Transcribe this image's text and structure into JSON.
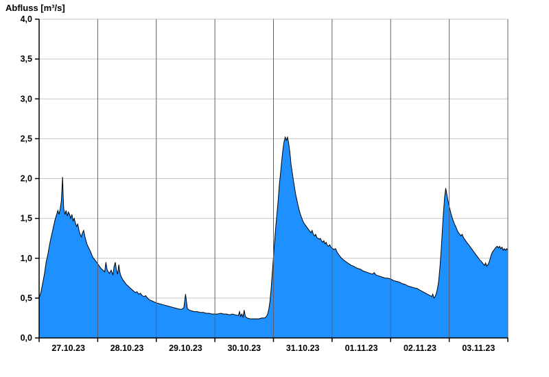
{
  "chart_data": {
    "type": "area",
    "title": "Abfluss [m³/s]",
    "ylabel": "Abfluss [m³/s]",
    "xlabel": "",
    "ylim": [
      0.0,
      4.0
    ],
    "y_tick_step": 0.5,
    "y_ticks": [
      0.0,
      0.5,
      1.0,
      1.5,
      2.0,
      2.5,
      3.0,
      3.5,
      4.0
    ],
    "y_tick_labels": [
      "0,0",
      "0,5",
      "1,0",
      "1,5",
      "2,0",
      "2,5",
      "3,0",
      "3,5",
      "4,0"
    ],
    "x_labels": [
      "27.10.23",
      "28.10.23",
      "29.10.23",
      "30.10.23",
      "31.10.23",
      "01.11.23",
      "02.11.23",
      "03.11.23"
    ],
    "x_range_days": [
      0,
      8
    ],
    "grid": true,
    "legend": "none",
    "fill_color": "#1E90FF",
    "line_color": "#000000",
    "grid_color": "#c6c6c6",
    "day_line_color": "#5f5f6e",
    "axis_color": "#000000",
    "series": [
      {
        "name": "Abfluss",
        "unit": "m³/s",
        "points": [
          [
            0.0,
            0.5
          ],
          [
            0.03,
            0.57
          ],
          [
            0.06,
            0.68
          ],
          [
            0.09,
            0.8
          ],
          [
            0.12,
            0.95
          ],
          [
            0.15,
            1.05
          ],
          [
            0.18,
            1.18
          ],
          [
            0.21,
            1.28
          ],
          [
            0.24,
            1.38
          ],
          [
            0.27,
            1.48
          ],
          [
            0.3,
            1.55
          ],
          [
            0.32,
            1.6
          ],
          [
            0.34,
            1.55
          ],
          [
            0.36,
            1.62
          ],
          [
            0.38,
            1.72
          ],
          [
            0.4,
            2.02
          ],
          [
            0.41,
            1.8
          ],
          [
            0.42,
            1.62
          ],
          [
            0.44,
            1.55
          ],
          [
            0.46,
            1.6
          ],
          [
            0.48,
            1.53
          ],
          [
            0.5,
            1.58
          ],
          [
            0.52,
            1.55
          ],
          [
            0.54,
            1.5
          ],
          [
            0.56,
            1.55
          ],
          [
            0.58,
            1.47
          ],
          [
            0.6,
            1.5
          ],
          [
            0.62,
            1.44
          ],
          [
            0.64,
            1.4
          ],
          [
            0.66,
            1.43
          ],
          [
            0.68,
            1.35
          ],
          [
            0.7,
            1.3
          ],
          [
            0.72,
            1.27
          ],
          [
            0.74,
            1.32
          ],
          [
            0.76,
            1.35
          ],
          [
            0.78,
            1.28
          ],
          [
            0.8,
            1.22
          ],
          [
            0.82,
            1.17
          ],
          [
            0.84,
            1.14
          ],
          [
            0.86,
            1.11
          ],
          [
            0.88,
            1.08
          ],
          [
            0.9,
            1.04
          ],
          [
            0.92,
            1.01
          ],
          [
            0.94,
            0.99
          ],
          [
            0.96,
            0.97
          ],
          [
            0.98,
            0.95
          ],
          [
            1.0,
            0.93
          ],
          [
            1.03,
            0.9
          ],
          [
            1.06,
            0.87
          ],
          [
            1.09,
            0.85
          ],
          [
            1.12,
            0.83
          ],
          [
            1.14,
            0.95
          ],
          [
            1.16,
            0.86
          ],
          [
            1.18,
            0.83
          ],
          [
            1.2,
            0.81
          ],
          [
            1.23,
            0.85
          ],
          [
            1.26,
            0.79
          ],
          [
            1.28,
            0.9
          ],
          [
            1.3,
            0.95
          ],
          [
            1.32,
            0.85
          ],
          [
            1.34,
            0.8
          ],
          [
            1.36,
            0.92
          ],
          [
            1.38,
            0.82
          ],
          [
            1.4,
            0.77
          ],
          [
            1.43,
            0.73
          ],
          [
            1.46,
            0.7
          ],
          [
            1.49,
            0.67
          ],
          [
            1.52,
            0.65
          ],
          [
            1.55,
            0.63
          ],
          [
            1.58,
            0.61
          ],
          [
            1.61,
            0.59
          ],
          [
            1.64,
            0.57
          ],
          [
            1.67,
            0.58
          ],
          [
            1.7,
            0.55
          ],
          [
            1.73,
            0.56
          ],
          [
            1.76,
            0.53
          ],
          [
            1.79,
            0.52
          ],
          [
            1.82,
            0.53
          ],
          [
            1.85,
            0.5
          ],
          [
            1.88,
            0.48
          ],
          [
            1.91,
            0.47
          ],
          [
            1.94,
            0.46
          ],
          [
            1.97,
            0.45
          ],
          [
            2.0,
            0.44
          ],
          [
            2.05,
            0.43
          ],
          [
            2.1,
            0.42
          ],
          [
            2.15,
            0.41
          ],
          [
            2.2,
            0.4
          ],
          [
            2.25,
            0.39
          ],
          [
            2.3,
            0.38
          ],
          [
            2.35,
            0.37
          ],
          [
            2.4,
            0.36
          ],
          [
            2.44,
            0.36
          ],
          [
            2.47,
            0.38
          ],
          [
            2.5,
            0.55
          ],
          [
            2.53,
            0.37
          ],
          [
            2.56,
            0.35
          ],
          [
            2.6,
            0.34
          ],
          [
            2.65,
            0.33
          ],
          [
            2.7,
            0.33
          ],
          [
            2.75,
            0.32
          ],
          [
            2.8,
            0.32
          ],
          [
            2.85,
            0.31
          ],
          [
            2.9,
            0.31
          ],
          [
            2.95,
            0.3
          ],
          [
            3.0,
            0.3
          ],
          [
            3.05,
            0.3
          ],
          [
            3.1,
            0.31
          ],
          [
            3.15,
            0.3
          ],
          [
            3.2,
            0.3
          ],
          [
            3.25,
            0.29
          ],
          [
            3.3,
            0.3
          ],
          [
            3.35,
            0.29
          ],
          [
            3.4,
            0.28
          ],
          [
            3.42,
            0.33
          ],
          [
            3.44,
            0.27
          ],
          [
            3.46,
            0.3
          ],
          [
            3.48,
            0.26
          ],
          [
            3.5,
            0.35
          ],
          [
            3.52,
            0.27
          ],
          [
            3.55,
            0.25
          ],
          [
            3.6,
            0.24
          ],
          [
            3.65,
            0.24
          ],
          [
            3.7,
            0.24
          ],
          [
            3.75,
            0.24
          ],
          [
            3.8,
            0.25
          ],
          [
            3.85,
            0.25
          ],
          [
            3.88,
            0.27
          ],
          [
            3.9,
            0.3
          ],
          [
            3.92,
            0.36
          ],
          [
            3.94,
            0.46
          ],
          [
            3.96,
            0.62
          ],
          [
            3.98,
            0.82
          ],
          [
            4.0,
            1.02
          ],
          [
            4.02,
            1.22
          ],
          [
            4.04,
            1.4
          ],
          [
            4.06,
            1.56
          ],
          [
            4.08,
            1.72
          ],
          [
            4.1,
            1.92
          ],
          [
            4.12,
            2.06
          ],
          [
            4.14,
            2.22
          ],
          [
            4.16,
            2.36
          ],
          [
            4.18,
            2.46
          ],
          [
            4.2,
            2.52
          ],
          [
            4.22,
            2.48
          ],
          [
            4.24,
            2.52
          ],
          [
            4.26,
            2.44
          ],
          [
            4.28,
            2.33
          ],
          [
            4.3,
            2.18
          ],
          [
            4.32,
            2.08
          ],
          [
            4.34,
            1.98
          ],
          [
            4.36,
            1.89
          ],
          [
            4.38,
            1.8
          ],
          [
            4.4,
            1.73
          ],
          [
            4.42,
            1.66
          ],
          [
            4.44,
            1.6
          ],
          [
            4.46,
            1.55
          ],
          [
            4.48,
            1.51
          ],
          [
            4.5,
            1.47
          ],
          [
            4.52,
            1.44
          ],
          [
            4.54,
            1.42
          ],
          [
            4.56,
            1.4
          ],
          [
            4.58,
            1.38
          ],
          [
            4.6,
            1.36
          ],
          [
            4.62,
            1.34
          ],
          [
            4.64,
            1.32
          ],
          [
            4.66,
            1.35
          ],
          [
            4.68,
            1.3
          ],
          [
            4.7,
            1.28
          ],
          [
            4.72,
            1.3
          ],
          [
            4.74,
            1.26
          ],
          [
            4.76,
            1.25
          ],
          [
            4.78,
            1.24
          ],
          [
            4.8,
            1.25
          ],
          [
            4.82,
            1.22
          ],
          [
            4.84,
            1.2
          ],
          [
            4.86,
            1.22
          ],
          [
            4.88,
            1.18
          ],
          [
            4.9,
            1.2
          ],
          [
            4.92,
            1.16
          ],
          [
            4.94,
            1.15
          ],
          [
            4.96,
            1.17
          ],
          [
            4.98,
            1.14
          ],
          [
            5.0,
            1.13
          ],
          [
            5.03,
            1.11
          ],
          [
            5.06,
            1.12
          ],
          [
            5.09,
            1.07
          ],
          [
            5.12,
            1.04
          ],
          [
            5.15,
            1.01
          ],
          [
            5.18,
            0.99
          ],
          [
            5.21,
            0.97
          ],
          [
            5.25,
            0.95
          ],
          [
            5.29,
            0.93
          ],
          [
            5.33,
            0.91
          ],
          [
            5.37,
            0.9
          ],
          [
            5.41,
            0.88
          ],
          [
            5.45,
            0.87
          ],
          [
            5.49,
            0.86
          ],
          [
            5.53,
            0.84
          ],
          [
            5.57,
            0.83
          ],
          [
            5.61,
            0.82
          ],
          [
            5.65,
            0.81
          ],
          [
            5.69,
            0.8
          ],
          [
            5.72,
            0.82
          ],
          [
            5.75,
            0.79
          ],
          [
            5.79,
            0.78
          ],
          [
            5.83,
            0.77
          ],
          [
            5.87,
            0.76
          ],
          [
            5.91,
            0.75
          ],
          [
            5.95,
            0.75
          ],
          [
            6.0,
            0.74
          ],
          [
            6.05,
            0.72
          ],
          [
            6.1,
            0.71
          ],
          [
            6.15,
            0.7
          ],
          [
            6.2,
            0.68
          ],
          [
            6.25,
            0.67
          ],
          [
            6.3,
            0.65
          ],
          [
            6.35,
            0.64
          ],
          [
            6.4,
            0.63
          ],
          [
            6.45,
            0.62
          ],
          [
            6.5,
            0.6
          ],
          [
            6.55,
            0.58
          ],
          [
            6.6,
            0.56
          ],
          [
            6.65,
            0.54
          ],
          [
            6.7,
            0.52
          ],
          [
            6.72,
            0.55
          ],
          [
            6.74,
            0.5
          ],
          [
            6.76,
            0.52
          ],
          [
            6.78,
            0.56
          ],
          [
            6.8,
            0.62
          ],
          [
            6.82,
            0.72
          ],
          [
            6.84,
            0.88
          ],
          [
            6.86,
            1.08
          ],
          [
            6.88,
            1.32
          ],
          [
            6.9,
            1.56
          ],
          [
            6.92,
            1.76
          ],
          [
            6.94,
            1.88
          ],
          [
            6.96,
            1.8
          ],
          [
            6.98,
            1.72
          ],
          [
            7.0,
            1.65
          ],
          [
            7.03,
            1.56
          ],
          [
            7.06,
            1.49
          ],
          [
            7.09,
            1.43
          ],
          [
            7.12,
            1.38
          ],
          [
            7.15,
            1.33
          ],
          [
            7.18,
            1.3
          ],
          [
            7.2,
            1.28
          ],
          [
            7.22,
            1.3
          ],
          [
            7.25,
            1.25
          ],
          [
            7.28,
            1.22
          ],
          [
            7.31,
            1.19
          ],
          [
            7.34,
            1.16
          ],
          [
            7.37,
            1.13
          ],
          [
            7.4,
            1.1
          ],
          [
            7.43,
            1.07
          ],
          [
            7.46,
            1.04
          ],
          [
            7.49,
            1.01
          ],
          [
            7.52,
            0.98
          ],
          [
            7.55,
            0.96
          ],
          [
            7.58,
            0.93
          ],
          [
            7.6,
            0.91
          ],
          [
            7.62,
            0.94
          ],
          [
            7.64,
            0.9
          ],
          [
            7.66,
            0.92
          ],
          [
            7.68,
            0.95
          ],
          [
            7.7,
            1.0
          ],
          [
            7.72,
            1.05
          ],
          [
            7.74,
            1.08
          ],
          [
            7.76,
            1.1
          ],
          [
            7.78,
            1.12
          ],
          [
            7.8,
            1.14
          ],
          [
            7.82,
            1.15
          ],
          [
            7.84,
            1.13
          ],
          [
            7.86,
            1.15
          ],
          [
            7.88,
            1.12
          ],
          [
            7.9,
            1.14
          ],
          [
            7.92,
            1.1
          ],
          [
            7.94,
            1.12
          ],
          [
            7.96,
            1.1
          ],
          [
            7.98,
            1.12
          ],
          [
            8.0,
            1.1
          ]
        ]
      }
    ]
  }
}
